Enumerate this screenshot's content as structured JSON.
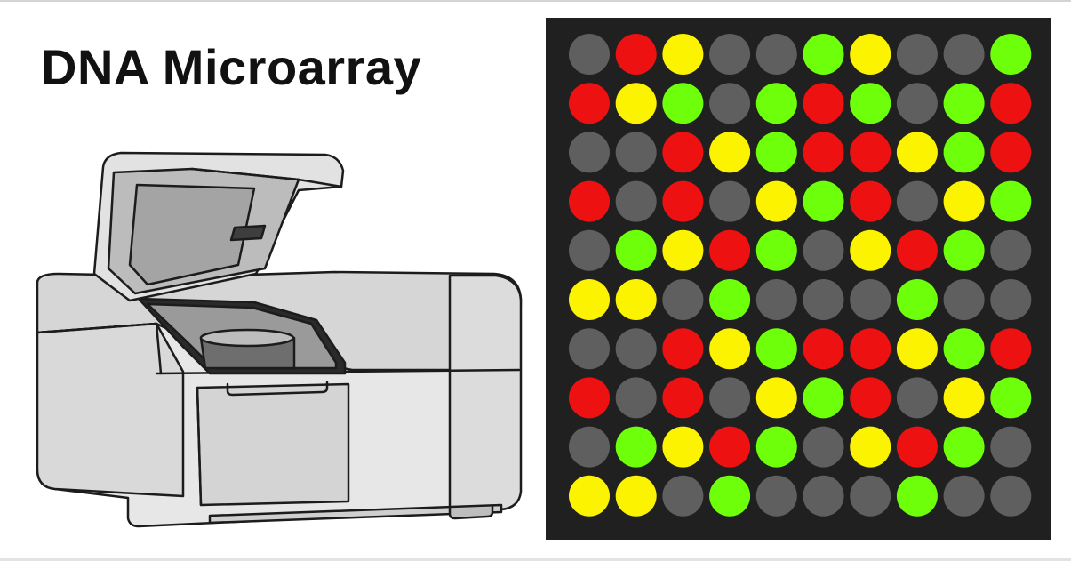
{
  "title": "DNA Microarray",
  "colors": {
    "background": "#ffffff",
    "panel": "#202020",
    "spot_gray": "#5f5f5f",
    "spot_red": "#ee1111",
    "spot_yellow": "#fbf300",
    "spot_green": "#6eff0a"
  },
  "illustration": {
    "name": "microarray-scanner",
    "lid_state": "open"
  },
  "microarray": {
    "rows": 10,
    "cols": 10,
    "legend": {
      "G": "spot_gray",
      "R": "spot_red",
      "Y": "spot_yellow",
      "L": "spot_green"
    },
    "grid": [
      [
        "G",
        "R",
        "Y",
        "G",
        "G",
        "L",
        "Y",
        "G",
        "G",
        "L"
      ],
      [
        "R",
        "Y",
        "L",
        "G",
        "L",
        "R",
        "L",
        "G",
        "L",
        "R"
      ],
      [
        "G",
        "G",
        "R",
        "Y",
        "L",
        "R",
        "R",
        "Y",
        "L",
        "R"
      ],
      [
        "R",
        "G",
        "R",
        "G",
        "Y",
        "L",
        "R",
        "G",
        "Y",
        "L"
      ],
      [
        "G",
        "L",
        "Y",
        "R",
        "L",
        "G",
        "Y",
        "R",
        "L",
        "G"
      ],
      [
        "Y",
        "Y",
        "G",
        "L",
        "G",
        "G",
        "G",
        "L",
        "G",
        "G"
      ],
      [
        "G",
        "G",
        "R",
        "Y",
        "L",
        "R",
        "R",
        "Y",
        "L",
        "R"
      ],
      [
        "R",
        "G",
        "R",
        "G",
        "Y",
        "L",
        "R",
        "G",
        "Y",
        "L"
      ],
      [
        "G",
        "L",
        "Y",
        "R",
        "L",
        "G",
        "Y",
        "R",
        "L",
        "G"
      ],
      [
        "Y",
        "Y",
        "G",
        "L",
        "G",
        "G",
        "G",
        "L",
        "G",
        "G"
      ]
    ]
  }
}
